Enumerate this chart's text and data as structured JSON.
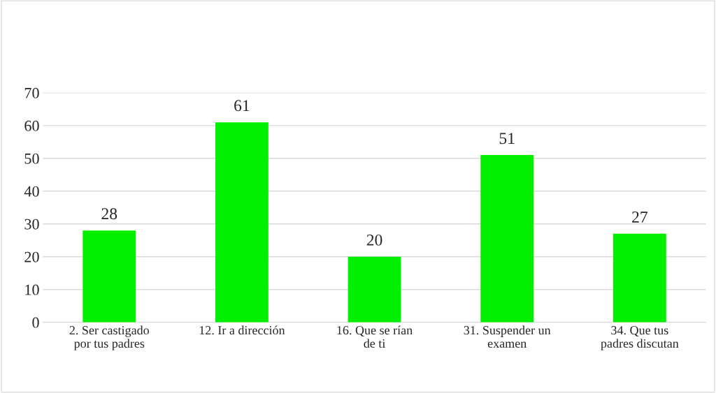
{
  "chart_data": {
    "type": "bar",
    "categories": [
      "2. Ser castigado\npor tus padres",
      "12. Ir a dirección",
      "16. Que se rían\nde ti",
      "31. Suspender un\nexamen",
      "34. Que tus\npadres discutan"
    ],
    "values": [
      28,
      61,
      20,
      51,
      27
    ],
    "color": "#00f000",
    "ylim": [
      0,
      70
    ],
    "yticks": [
      0,
      10,
      20,
      30,
      40,
      50,
      60,
      70
    ],
    "grid": "y",
    "data_labels": true
  }
}
